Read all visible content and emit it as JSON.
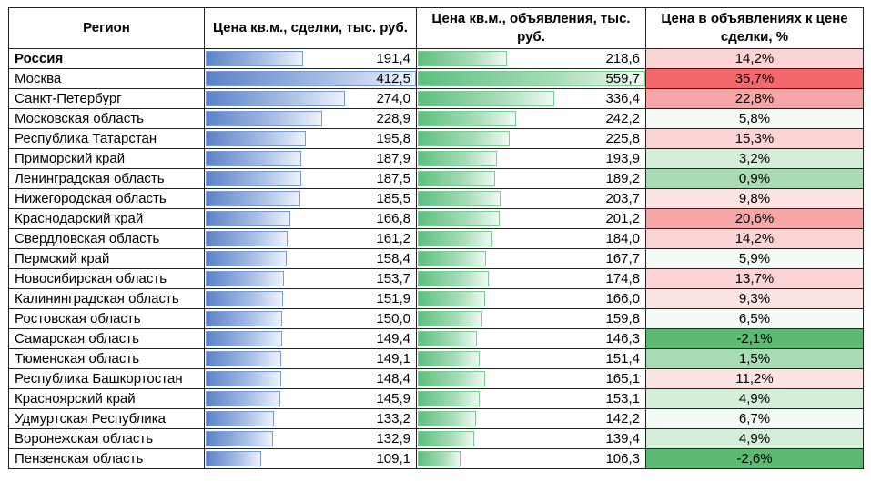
{
  "headers": {
    "region": "Регион",
    "deal_price": "Цена кв.м., сделки, тыс. руб.",
    "ad_price": "Цена кв.м., объявления, тыс. руб.",
    "ratio": "Цена в объявлениях к цене сделки, %"
  },
  "scale": {
    "deal_max": 412.5,
    "ad_max": 559.7
  },
  "colors": {
    "ratio_red_strong": "#f2686b",
    "ratio_red": "#f7a6a8",
    "ratio_red_light": "#fbd3d4",
    "ratio_pink": "#fce4e4",
    "ratio_neutral": "#f4faf5",
    "ratio_green_light": "#d5eeda",
    "ratio_green": "#a9dcb4",
    "ratio_green_strong": "#5cba73"
  },
  "rows": [
    {
      "region": "Россия",
      "deal": "191,4",
      "deal_v": 191.4,
      "ad": "218,6",
      "ad_v": 218.6,
      "ratio": "14,2%",
      "ratio_v": 14.2,
      "bold": true
    },
    {
      "region": "Москва",
      "deal": "412,5",
      "deal_v": 412.5,
      "ad": "559,7",
      "ad_v": 559.7,
      "ratio": "35,7%",
      "ratio_v": 35.7
    },
    {
      "region": "Санкт-Петербург",
      "deal": "274,0",
      "deal_v": 274.0,
      "ad": "336,4",
      "ad_v": 336.4,
      "ratio": "22,8%",
      "ratio_v": 22.8
    },
    {
      "region": "Московская область",
      "deal": "228,9",
      "deal_v": 228.9,
      "ad": "242,2",
      "ad_v": 242.2,
      "ratio": "5,8%",
      "ratio_v": 5.8
    },
    {
      "region": "Республика Татарстан",
      "deal": "195,8",
      "deal_v": 195.8,
      "ad": "225,8",
      "ad_v": 225.8,
      "ratio": "15,3%",
      "ratio_v": 15.3
    },
    {
      "region": "Приморский край",
      "deal": "187,9",
      "deal_v": 187.9,
      "ad": "193,9",
      "ad_v": 193.9,
      "ratio": "3,2%",
      "ratio_v": 3.2
    },
    {
      "region": "Ленинградская область",
      "deal": "187,5",
      "deal_v": 187.5,
      "ad": "189,2",
      "ad_v": 189.2,
      "ratio": "0,9%",
      "ratio_v": 0.9
    },
    {
      "region": "Нижегородская область",
      "deal": "185,5",
      "deal_v": 185.5,
      "ad": "203,7",
      "ad_v": 203.7,
      "ratio": "9,8%",
      "ratio_v": 9.8
    },
    {
      "region": "Краснодарский край",
      "deal": "166,8",
      "deal_v": 166.8,
      "ad": "201,2",
      "ad_v": 201.2,
      "ratio": "20,6%",
      "ratio_v": 20.6
    },
    {
      "region": "Свердловская область",
      "deal": "161,2",
      "deal_v": 161.2,
      "ad": "184,0",
      "ad_v": 184.0,
      "ratio": "14,2%",
      "ratio_v": 14.2
    },
    {
      "region": "Пермский край",
      "deal": "158,4",
      "deal_v": 158.4,
      "ad": "167,7",
      "ad_v": 167.7,
      "ratio": "5,9%",
      "ratio_v": 5.9
    },
    {
      "region": "Новосибирская область",
      "deal": "153,7",
      "deal_v": 153.7,
      "ad": "174,8",
      "ad_v": 174.8,
      "ratio": "13,7%",
      "ratio_v": 13.7
    },
    {
      "region": "Калининградская область",
      "deal": "151,9",
      "deal_v": 151.9,
      "ad": "166,0",
      "ad_v": 166.0,
      "ratio": "9,3%",
      "ratio_v": 9.3
    },
    {
      "region": "Ростовская область",
      "deal": "150,0",
      "deal_v": 150.0,
      "ad": "159,8",
      "ad_v": 159.8,
      "ratio": "6,5%",
      "ratio_v": 6.5
    },
    {
      "region": "Самарская область",
      "deal": "149,4",
      "deal_v": 149.4,
      "ad": "146,3",
      "ad_v": 146.3,
      "ratio": "-2,1%",
      "ratio_v": -2.1
    },
    {
      "region": "Тюменская область",
      "deal": "149,1",
      "deal_v": 149.1,
      "ad": "151,4",
      "ad_v": 151.4,
      "ratio": "1,5%",
      "ratio_v": 1.5
    },
    {
      "region": "Республика Башкортостан",
      "deal": "148,4",
      "deal_v": 148.4,
      "ad": "165,1",
      "ad_v": 165.1,
      "ratio": "11,2%",
      "ratio_v": 11.2
    },
    {
      "region": "Красноярский край",
      "deal": "145,9",
      "deal_v": 145.9,
      "ad": "153,1",
      "ad_v": 153.1,
      "ratio": "4,9%",
      "ratio_v": 4.9
    },
    {
      "region": "Удмуртская Республика",
      "deal": "133,2",
      "deal_v": 133.2,
      "ad": "142,2",
      "ad_v": 142.2,
      "ratio": "6,7%",
      "ratio_v": 6.7
    },
    {
      "region": "Воронежская область",
      "deal": "132,9",
      "deal_v": 132.9,
      "ad": "139,4",
      "ad_v": 139.4,
      "ratio": "4,9%",
      "ratio_v": 4.9
    },
    {
      "region": "Пензенская область",
      "deal": "109,1",
      "deal_v": 109.1,
      "ad": "106,3",
      "ad_v": 106.3,
      "ratio": "-2,6%",
      "ratio_v": -2.6
    }
  ]
}
